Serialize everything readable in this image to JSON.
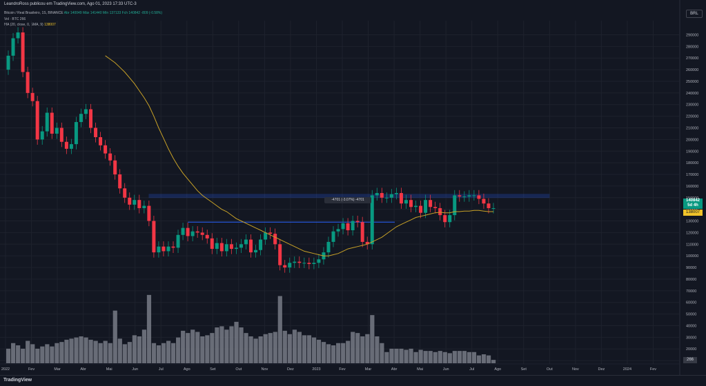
{
  "header": {
    "topline": "LeandroRoss publicou em TradingView.com, Ago 01, 2023 17:33 UTC-3",
    "symbol": "Bitcoin / Real Brasileiro, 1S, BINANCE",
    "ohlc": "Abr 140049  Máx 141440  Mín 137133  Fch 140842  -809 (-0.58%)",
    "volume": "Vol · BTC  266",
    "ma_label": "MA (20, close, 0, SMA, 9)",
    "ma_value": "138007"
  },
  "badges": {
    "currency": "BRL",
    "last_price": "140842",
    "countdown": "5d 4h",
    "ma_price": "138007",
    "volume": "266"
  },
  "measure_label": "-4701 (-3.07%) -4701",
  "footer": {
    "logo": "TradingView"
  },
  "colors": {
    "up": "#089981",
    "down": "#f23645",
    "ma": "#c9a227",
    "zone": "#2962ff",
    "volume": "#787b86",
    "background": "#131722"
  },
  "chart_data": {
    "type": "candlestick",
    "y_ticks": [
      "290000",
      "280000",
      "270000",
      "260000",
      "250000",
      "240000",
      "230000",
      "220000",
      "210000",
      "200000",
      "190000",
      "180000",
      "170000",
      "160000",
      "150000",
      "140000",
      "130000",
      "120000",
      "110000",
      "100000",
      "90000",
      "80000",
      "70000",
      "60000",
      "50000",
      "40000",
      "30000",
      "20000",
      "10000"
    ],
    "x_ticks": [
      "2022",
      "Fev",
      "Mar",
      "Abr",
      "Mai",
      "Jun",
      "Jul",
      "Ago",
      "Set",
      "Out",
      "Nov",
      "Dez",
      "2023",
      "Fev",
      "Mar",
      "Abr",
      "Mai",
      "Jun",
      "Jul",
      "Ago",
      "Set",
      "Out",
      "Nov",
      "Dez",
      "2024",
      "Fev"
    ],
    "close": [
      272000,
      287000,
      292000,
      258000,
      240000,
      233000,
      200000,
      207000,
      223000,
      205000,
      210000,
      198000,
      192000,
      196000,
      215000,
      222000,
      226000,
      210000,
      202000,
      195000,
      188000,
      182000,
      170000,
      158000,
      150000,
      144000,
      148000,
      141000,
      143000,
      130000,
      103000,
      108000,
      104000,
      108000,
      107000,
      118000,
      124000,
      117000,
      121000,
      120000,
      118000,
      115000,
      106000,
      111000,
      104000,
      110000,
      106000,
      107000,
      110000,
      114000,
      103000,
      105000,
      114000,
      120000,
      119000,
      110000,
      92000,
      90000,
      94000,
      95000,
      94000,
      94000,
      93000,
      94000,
      97000,
      103000,
      112000,
      121000,
      123000,
      128000,
      122000,
      130000,
      129000,
      112000,
      110000,
      152000,
      154000,
      150000,
      150000,
      153000,
      154000,
      145000,
      148000,
      142000,
      143000,
      137000,
      148000,
      142000,
      141000,
      135000,
      129000,
      135000,
      152000,
      151000,
      151000,
      152000,
      152000,
      149000,
      145000,
      141000,
      141000
    ],
    "volume": [
      13000,
      18000,
      16000,
      13000,
      20000,
      17000,
      13000,
      15000,
      17000,
      15000,
      18000,
      19000,
      21000,
      22000,
      23000,
      24000,
      23000,
      21000,
      20000,
      18000,
      20000,
      18000,
      47000,
      22000,
      17000,
      19000,
      25000,
      24000,
      30000,
      61000,
      18000,
      16000,
      18000,
      20000,
      18000,
      23000,
      29000,
      27000,
      30000,
      28000,
      24000,
      25000,
      27000,
      32000,
      33000,
      30000,
      33000,
      37000,
      32000,
      27000,
      24000,
      22000,
      24000,
      26000,
      27000,
      28000,
      60000,
      29000,
      26000,
      30000,
      28000,
      25000,
      25000,
      23000,
      21000,
      19000,
      17000,
      16000,
      18000,
      18000,
      20000,
      28000,
      27000,
      24000,
      26000,
      43000,
      24000,
      18000,
      10000,
      13000,
      13000,
      13000,
      12000,
      13000,
      10000,
      12000,
      11000,
      11000,
      10000,
      11000,
      10000,
      9000,
      11000,
      11000,
      11000,
      10000,
      10000,
      7000,
      8000,
      7000,
      3000
    ],
    "ma": [
      null,
      null,
      null,
      null,
      null,
      null,
      null,
      null,
      null,
      null,
      null,
      null,
      null,
      null,
      null,
      null,
      null,
      null,
      null,
      null,
      272000,
      269000,
      266000,
      262000,
      258000,
      253000,
      248000,
      242000,
      236000,
      229000,
      220000,
      210000,
      201000,
      192000,
      184000,
      177000,
      171000,
      166000,
      161000,
      156000,
      152000,
      149000,
      146000,
      143000,
      140000,
      138000,
      135000,
      132000,
      130000,
      128000,
      126000,
      124000,
      122000,
      120000,
      118000,
      116000,
      114000,
      112000,
      110000,
      108000,
      106000,
      104000,
      103000,
      102000,
      101000,
      100000,
      100000,
      101000,
      102000,
      104000,
      106000,
      107000,
      108000,
      109000,
      110000,
      112000,
      114000,
      116000,
      119000,
      122000,
      125000,
      127000,
      129000,
      131000,
      133000,
      134000,
      135000,
      136000,
      137000,
      137500,
      137000,
      137000,
      138000,
      138000,
      138500,
      138500,
      139000,
      139000,
      138500,
      138000,
      138007
    ],
    "levels": {
      "zone_top": 153000,
      "zone_bottom": 150000,
      "support_line": 129000
    },
    "ylim": [
      0,
      295000
    ],
    "volume_max": 80000
  }
}
